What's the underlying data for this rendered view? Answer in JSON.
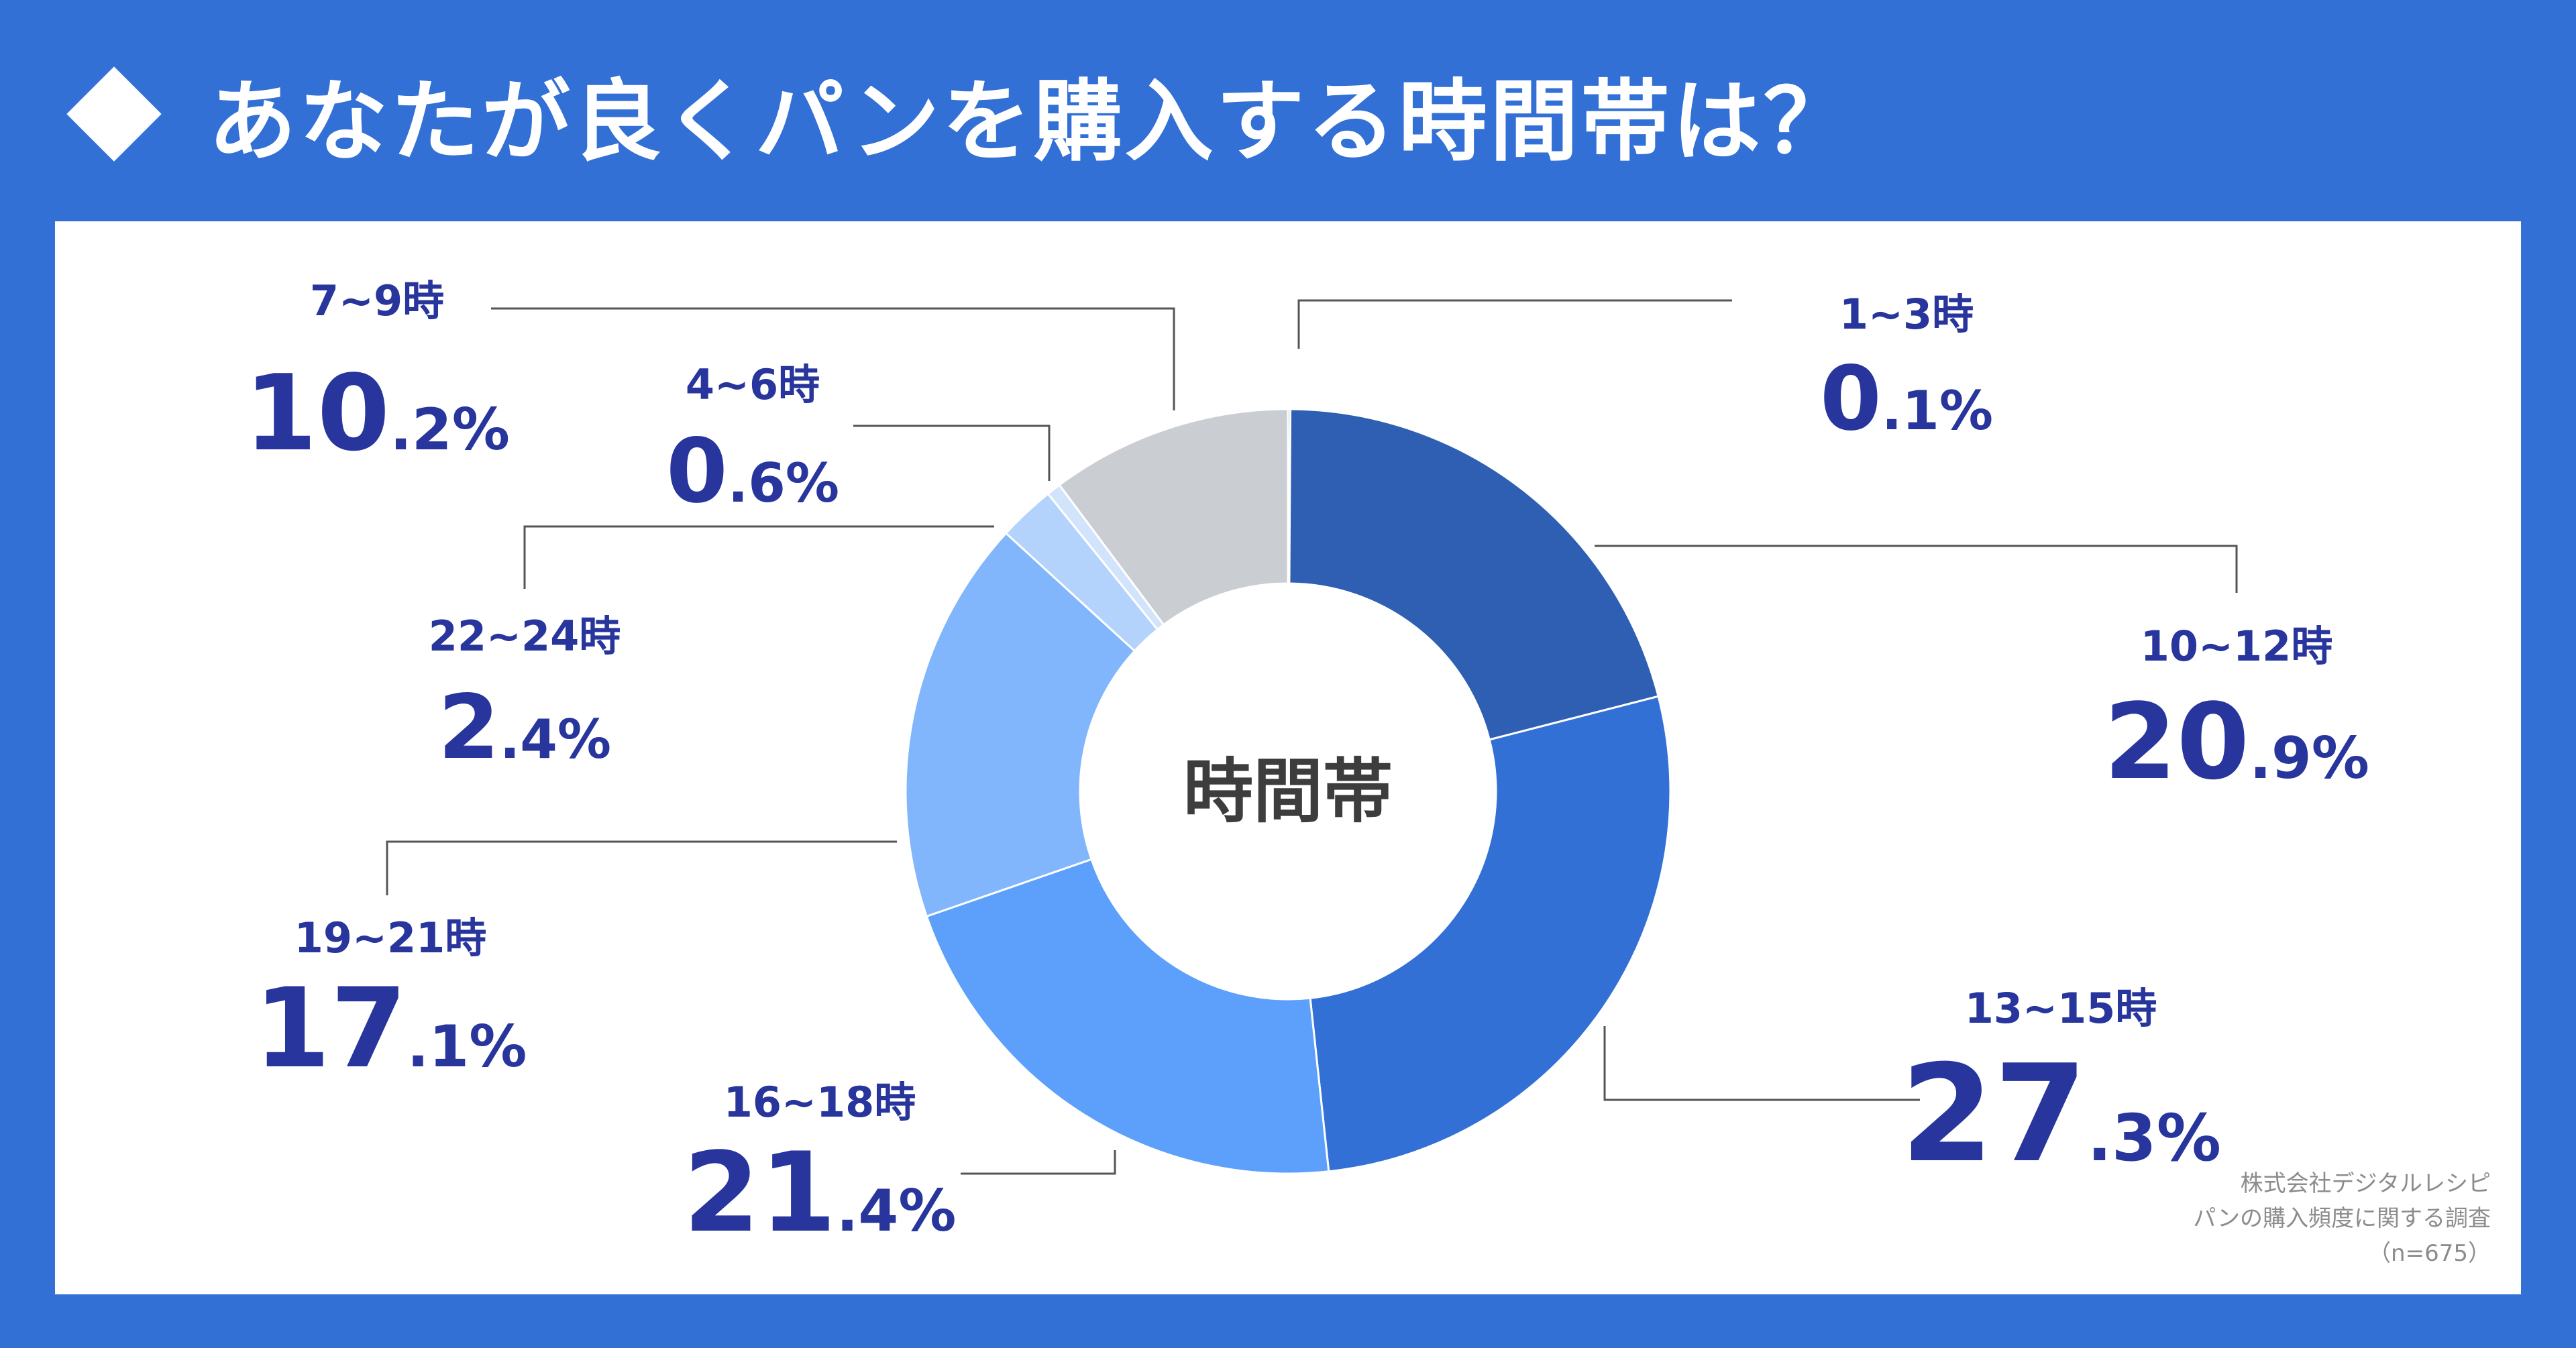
{
  "title": "あなたが良くパンを購入する時間帯は？",
  "chart_data": {
    "type": "pie",
    "center_label": "時間帯",
    "slices": [
      {
        "label": "1~3時",
        "value": 0.1,
        "int": "0",
        "dec": ".1%",
        "color": "#7f7f7f"
      },
      {
        "label": "10~12時",
        "value": 20.9,
        "int": "20",
        "dec": ".9%",
        "color": "#2f5fb3"
      },
      {
        "label": "13~15時",
        "value": 27.3,
        "int": "27",
        "dec": ".3%",
        "color": "#3270d6"
      },
      {
        "label": "16~18時",
        "value": 21.4,
        "int": "21",
        "dec": ".4%",
        "color": "#5ca0fc"
      },
      {
        "label": "19~21時",
        "value": 17.1,
        "int": "17",
        "dec": ".1%",
        "color": "#81b6fc"
      },
      {
        "label": "22~24時",
        "value": 2.4,
        "int": "2",
        "dec": ".4%",
        "color": "#b3d2fc"
      },
      {
        "label": "4~6時",
        "value": 0.6,
        "int": "0",
        "dec": ".6%",
        "color": "#d2e4fc"
      },
      {
        "label": "7~9時",
        "value": 10.2,
        "int": "10",
        "dec": ".2%",
        "color": "#cacdd2"
      }
    ]
  },
  "source": {
    "line1": "株式会社デジタルレシピ",
    "line2": "パンの購入頻度に関する調査",
    "line3": "（n=675）"
  }
}
